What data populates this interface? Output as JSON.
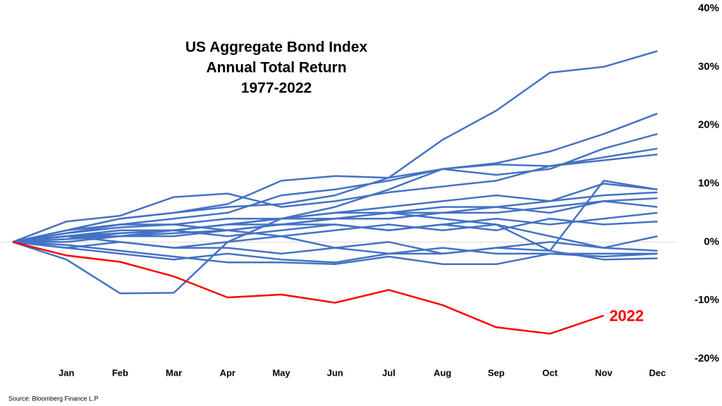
{
  "chart_data": {
    "type": "line",
    "title": [
      "US Aggregate Bond Index",
      "Annual Total Return",
      "1977-2022"
    ],
    "source": "Source: Bloomberg Finance L.P",
    "categories": [
      null,
      "Jan",
      "Feb",
      "Mar",
      "Apr",
      "May",
      "Jun",
      "Jul",
      "Aug",
      "Sep",
      "Oct",
      "Nov",
      "Dec"
    ],
    "ylim": [
      -20,
      40
    ],
    "yticks": [
      {
        "value": 40,
        "label": "40%"
      },
      {
        "value": 30,
        "label": "30%"
      },
      {
        "value": 20,
        "label": "20%"
      },
      {
        "value": 10,
        "label": "10%"
      },
      {
        "value": 0,
        "label": "0%"
      },
      {
        "value": -10,
        "label": "-10%"
      },
      {
        "value": -20,
        "label": "-20%"
      }
    ],
    "zero_line": true,
    "series": [
      {
        "color": "#4472c4",
        "values": [
          0,
          2,
          4,
          5,
          6,
          6.5,
          8,
          11,
          17.5,
          22.5,
          29,
          30,
          32.7
        ]
      },
      {
        "color": "#4472c4",
        "values": [
          0,
          -3,
          -8.8,
          -8.7,
          0,
          4,
          6,
          9,
          12.5,
          13.5,
          15.5,
          18.5,
          22
        ]
      },
      {
        "color": "#4472c4",
        "values": [
          0,
          3.5,
          4.5,
          7.7,
          8.3,
          6,
          7,
          8.5,
          9.5,
          10.5,
          13,
          14.5,
          16
        ]
      },
      {
        "color": "#4472c4",
        "values": [
          0,
          2,
          4,
          5,
          6.5,
          10.5,
          11.3,
          11,
          12.5,
          11.5,
          12.5,
          16,
          18.5
        ]
      },
      {
        "color": "#4472c4",
        "values": [
          0,
          1.5,
          3,
          4,
          5,
          8,
          9,
          10.5,
          12.5,
          13.3,
          13,
          14,
          15
        ]
      },
      {
        "color": "#4472c4",
        "values": [
          0,
          1,
          1,
          2,
          3,
          4,
          5,
          6,
          7,
          8,
          7,
          10,
          9
        ]
      },
      {
        "color": "#4472c4",
        "values": [
          0,
          0.5,
          1.5,
          2,
          3,
          4,
          4,
          5,
          5,
          6,
          5,
          7,
          6
        ]
      },
      {
        "color": "#4472c4",
        "values": [
          0,
          -1,
          -2,
          -3,
          -2,
          -3,
          -3.5,
          -2,
          -2,
          -1,
          -1.5,
          -3,
          -2.8
        ]
      },
      {
        "color": "#4472c4",
        "values": [
          0,
          -0.5,
          -1.5,
          -2.5,
          -3.5,
          -3.5,
          -3.8,
          -2.5,
          -3.8,
          -3.8,
          -2,
          -2,
          -2
        ]
      },
      {
        "color": "#4472c4",
        "values": [
          0,
          1,
          0,
          -1,
          0,
          1,
          -1,
          0,
          -2,
          -1,
          0,
          -1,
          -1.5
        ]
      },
      {
        "color": "#4472c4",
        "values": [
          0,
          2,
          3,
          3,
          4,
          4,
          5,
          5,
          6,
          6,
          7,
          8,
          8.5
        ]
      },
      {
        "color": "#4472c4",
        "values": [
          0,
          0.5,
          1,
          1.5,
          2,
          1,
          2,
          3,
          2,
          3,
          1,
          -1,
          1
        ]
      },
      {
        "color": "#4472c4",
        "values": [
          0,
          1,
          2,
          2,
          3,
          3,
          4,
          5,
          4,
          3,
          -1.5,
          10.5,
          9
        ]
      },
      {
        "color": "#4472c4",
        "values": [
          0,
          1,
          1.5,
          2,
          1,
          2,
          3,
          2,
          3,
          2,
          4,
          3,
          3.5
        ]
      },
      {
        "color": "#4472c4",
        "values": [
          0,
          0,
          1,
          1,
          2,
          3,
          3,
          2,
          3,
          4,
          3,
          4,
          5
        ]
      },
      {
        "color": "#4472c4",
        "values": [
          0,
          1.5,
          2.5,
          3,
          2,
          3,
          4,
          4,
          5,
          5,
          6,
          7,
          7.5
        ]
      },
      {
        "color": "#4472c4",
        "values": [
          0,
          -1,
          0,
          -1,
          -1,
          -2,
          -1,
          -2,
          -1,
          -2,
          -2,
          -2.5,
          -2
        ]
      },
      {
        "name": "2022",
        "color": "#ff0000",
        "values": [
          0,
          -2.3,
          -3.4,
          -5.9,
          -9.5,
          -9.0,
          -10.4,
          -8.2,
          -10.8,
          -14.6,
          -15.7,
          -12.6,
          null
        ]
      }
    ]
  }
}
